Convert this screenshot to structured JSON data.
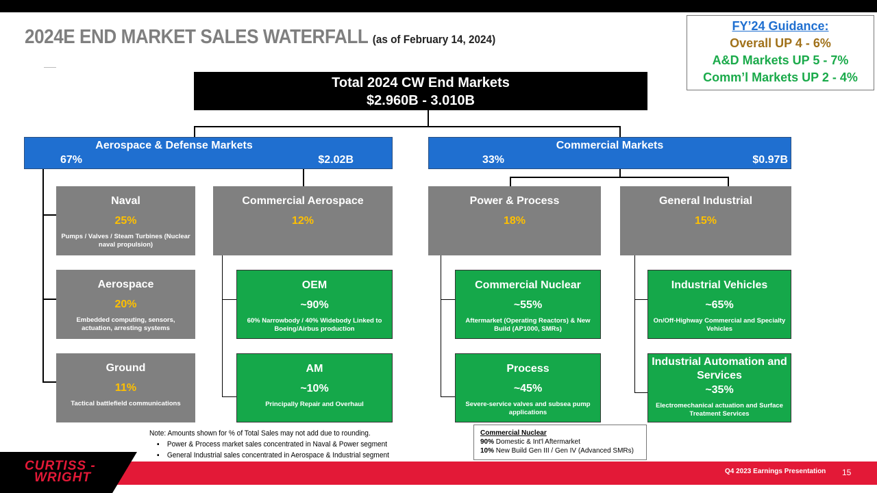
{
  "header": {
    "title": "2024E END MARKET SALES WATERFALL",
    "subtitle": "(as of February 14, 2024)"
  },
  "guidance": {
    "heading": "FY’24 Guidance:",
    "overall": "Overall UP 4 - 6%",
    "ad": "A&D Markets UP 5 - 7%",
    "commercial": "Comm’l Markets UP 2 - 4%"
  },
  "total": {
    "line1": "Total 2024 CW End Markets",
    "line2": "$2.960B - 3.010B"
  },
  "segments": {
    "ad": {
      "title": "Aerospace & Defense Markets",
      "pct": "67%",
      "value": "$2.02B"
    },
    "commercial": {
      "title": "Commercial Markets",
      "pct": "33%",
      "value": "$0.97B"
    }
  },
  "markets": {
    "naval": {
      "title": "Naval",
      "pct": "25%",
      "desc": "Pumps / Valves / Steam Turbines (Nuclear naval propulsion)"
    },
    "aerospace": {
      "title": "Aerospace",
      "pct": "20%",
      "desc": "Embedded computing, sensors, actuation, arresting systems"
    },
    "ground": {
      "title": "Ground",
      "pct": "11%",
      "desc": "Tactical battlefield communications"
    },
    "comm_aero": {
      "title": "Commercial Aerospace",
      "pct": "12%"
    },
    "oem": {
      "title": "OEM",
      "pct": "~90%",
      "desc": "60% Narrowbody / 40% Widebody Linked to Boeing/Airbus production"
    },
    "am": {
      "title": "AM",
      "pct": "~10%",
      "desc": "Principally Repair and Overhaul"
    },
    "power": {
      "title": "Power & Process",
      "pct": "18%"
    },
    "nuclear": {
      "title": "Commercial Nuclear",
      "pct": "~55%",
      "desc": "Aftermarket (Operating Reactors) & New Build (AP1000, SMRs)"
    },
    "process": {
      "title": "Process",
      "pct": "~45%",
      "desc": "Severe-service valves and subsea pump applications"
    },
    "general": {
      "title": "General Industrial",
      "pct": "15%"
    },
    "vehicles": {
      "title": "Industrial Vehicles",
      "pct": "~65%",
      "desc": "On/Off-Highway Commercial and Specialty Vehicles"
    },
    "automation": {
      "title": "Industrial Automation and Services",
      "pct": "~35%",
      "desc": "Electromechanical actuation and Surface Treatment Services"
    }
  },
  "note": {
    "line1": "Note:  Amounts shown for % of Total Sales may not add due to rounding.",
    "bullet1": "Power & Process market sales concentrated  in Naval & Power segment",
    "bullet2": "General Industrial  sales concentrated  in Aerospace & Industrial  segment",
    "bullet_char": "▪"
  },
  "callout": {
    "heading": "Commercial Nuclear",
    "line1_pct": "90%",
    "line1_text": "Domestic  & Int'l Aftermarket",
    "line2_pct": "10%",
    "line2_text": "New Build Gen III / Gen IV (Advanced SMRs)"
  },
  "footer": {
    "logo_line1": "CURTISS -",
    "logo_line2": "WRIGHT",
    "presentation": "Q4 2023 Earnings Presentation",
    "page": "15"
  },
  "colors": {
    "accent_blue": "#1f6fd0",
    "green": "#15a84a",
    "gray": "#808080",
    "gold": "#ffc000",
    "brand_red": "#e31937"
  }
}
